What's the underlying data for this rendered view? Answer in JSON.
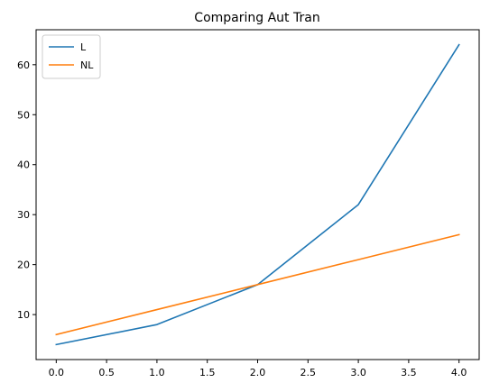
{
  "chart_data": {
    "type": "line",
    "title": "Comparing Aut Tran",
    "xlabel": "",
    "ylabel": "",
    "x": [
      0,
      1,
      2,
      3,
      4
    ],
    "xlim": [
      -0.2,
      4.2
    ],
    "ylim": [
      1,
      67
    ],
    "xticks": [
      0.0,
      0.5,
      1.0,
      1.5,
      2.0,
      2.5,
      3.0,
      3.5,
      4.0
    ],
    "xtick_labels": [
      "0.0",
      "0.5",
      "1.0",
      "1.5",
      "2.0",
      "2.5",
      "3.0",
      "3.5",
      "4.0"
    ],
    "yticks": [
      10,
      20,
      30,
      40,
      50,
      60
    ],
    "ytick_labels": [
      "10",
      "20",
      "30",
      "40",
      "50",
      "60"
    ],
    "grid": false,
    "legend_position": "top-left",
    "series": [
      {
        "name": "L",
        "color": "#1f77b4",
        "values": [
          4,
          8,
          16,
          32,
          64
        ]
      },
      {
        "name": "NL",
        "color": "#ff7f0e",
        "values": [
          6,
          11,
          16,
          21,
          26
        ]
      }
    ]
  }
}
